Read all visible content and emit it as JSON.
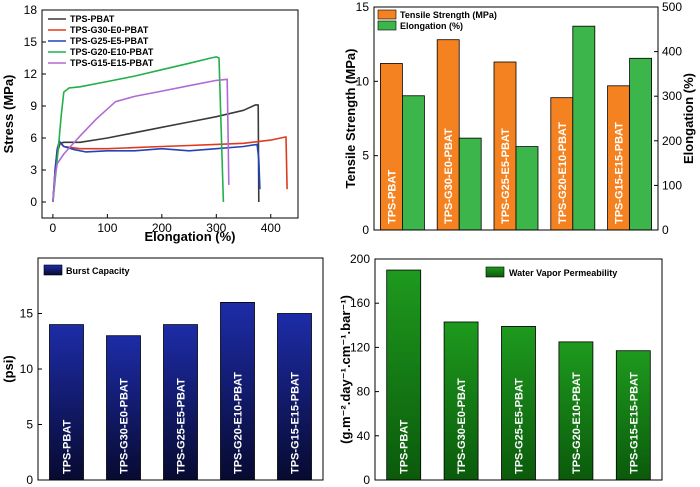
{
  "chart_data": [
    {
      "type": "line",
      "panel": "top-left",
      "xlabel": "Elongation (%)",
      "ylabel": "Stress (MPa)",
      "xlim": [
        -20,
        450
      ],
      "ylim": [
        -1.5,
        18
      ],
      "xticks": [
        0,
        100,
        200,
        300,
        400
      ],
      "yticks": [
        0,
        3,
        6,
        9,
        12,
        15,
        18
      ],
      "legend_position": "top-left",
      "series": [
        {
          "name": "TPS-PBAT",
          "color": "#3a3a3a",
          "x": [
            0,
            4,
            8,
            13,
            20,
            50,
            100,
            150,
            200,
            250,
            300,
            350,
            372,
            377,
            378
          ],
          "y": [
            0,
            2.5,
            4.6,
            5.5,
            5.6,
            5.6,
            6.0,
            6.5,
            7.0,
            7.5,
            8.0,
            8.6,
            9.1,
            9.1,
            0
          ]
        },
        {
          "name": "TPS-G30-E0-PBAT",
          "color": "#e03a1e",
          "x": [
            0,
            4,
            8,
            12,
            20,
            50,
            100,
            150,
            200,
            250,
            300,
            350,
            400,
            428,
            430
          ],
          "y": [
            0,
            3.0,
            5.0,
            5.6,
            5.2,
            5.0,
            5.0,
            5.1,
            5.2,
            5.3,
            5.4,
            5.5,
            5.8,
            6.1,
            1.2
          ]
        },
        {
          "name": "TPS-G25-E5-PBAT",
          "color": "#2244b8",
          "x": [
            0,
            4,
            8,
            12,
            20,
            40,
            60,
            100,
            150,
            200,
            250,
            300,
            350,
            375,
            378,
            380
          ],
          "y": [
            0,
            3.0,
            5.0,
            5.7,
            5.2,
            4.9,
            4.7,
            4.8,
            4.8,
            5.0,
            4.8,
            5.0,
            5.2,
            5.4,
            4.0,
            1.2
          ]
        },
        {
          "name": "TPS-G20-E10-PBAT",
          "color": "#22b04a",
          "x": [
            0,
            5,
            10,
            15,
            20,
            30,
            50,
            100,
            150,
            200,
            250,
            290,
            300,
            305,
            313
          ],
          "y": [
            0,
            2.5,
            5.0,
            8.0,
            10.3,
            10.7,
            10.8,
            11.3,
            11.8,
            12.4,
            13.0,
            13.5,
            13.6,
            13.5,
            0
          ]
        },
        {
          "name": "TPS-G15-E15-PBAT",
          "color": "#b06ad6",
          "x": [
            0,
            4,
            8,
            20,
            50,
            80,
            115,
            150,
            200,
            250,
            300,
            320,
            322,
            323
          ],
          "y": [
            0,
            2.5,
            3.6,
            4.5,
            6.2,
            7.8,
            9.4,
            9.9,
            10.4,
            10.9,
            11.4,
            11.5,
            5.0,
            1.6
          ]
        }
      ]
    },
    {
      "type": "bar",
      "panel": "top-right",
      "categories": [
        "TPS-PBAT",
        "TPS-G30-E0-PBAT",
        "TPS-G25-E5-PBAT",
        "TPS-G20-E10-PBAT",
        "TPS-G15-E15-PBAT"
      ],
      "ylabel": "Tensile Strength (MPa)",
      "y2label": "Elongation (%)",
      "ylim": [
        0,
        15
      ],
      "y2lim": [
        0,
        500
      ],
      "yticks": [
        0,
        5,
        10,
        15
      ],
      "y2ticks": [
        0,
        100,
        200,
        300,
        400,
        500
      ],
      "legend_position": "top-left",
      "series": [
        {
          "name": "Tensile Strength (MPa)",
          "axis": "left",
          "color": "#f58220",
          "values": [
            11.2,
            12.8,
            11.3,
            8.9,
            9.7
          ]
        },
        {
          "name": "Elongation (%)",
          "axis": "right",
          "color": "#3cb54a",
          "values": [
            301,
            206,
            187,
            457,
            385
          ]
        }
      ]
    },
    {
      "type": "bar",
      "panel": "bottom-left",
      "categories": [
        "TPS-PBAT",
        "TPS-G30-E0-PBAT",
        "TPS-G25-E5-PBAT",
        "TPS-G20-E10-PBAT",
        "TPS-G15-E15-PBAT"
      ],
      "xlabel": "",
      "ylabel": "(psi)",
      "ylim": [
        0,
        20
      ],
      "yticks": [
        0,
        5,
        10,
        15
      ],
      "legend_position": "top-left",
      "series": [
        {
          "name": "Burst Capacity",
          "color": "#1d2a9a",
          "values": [
            14,
            13,
            14,
            16,
            15
          ]
        }
      ]
    },
    {
      "type": "bar",
      "panel": "bottom-right",
      "categories": [
        "TPS-PBAT",
        "TPS-G30-E0-PBAT",
        "TPS-G25-E5-PBAT",
        "TPS-G20-E10-PBAT",
        "TPS-G15-E15-PBAT"
      ],
      "ylabel": "(g.m⁻².day⁻¹.cm⁻¹.bar⁻¹)",
      "ylim": [
        0,
        200
      ],
      "yticks": [
        0,
        40,
        80,
        120,
        160,
        200
      ],
      "legend_position": "top-right",
      "series": [
        {
          "name": "Water Vapor Permeability",
          "color": "#1f8a1f",
          "values": [
            190,
            143,
            139,
            125,
            117
          ]
        }
      ]
    }
  ]
}
